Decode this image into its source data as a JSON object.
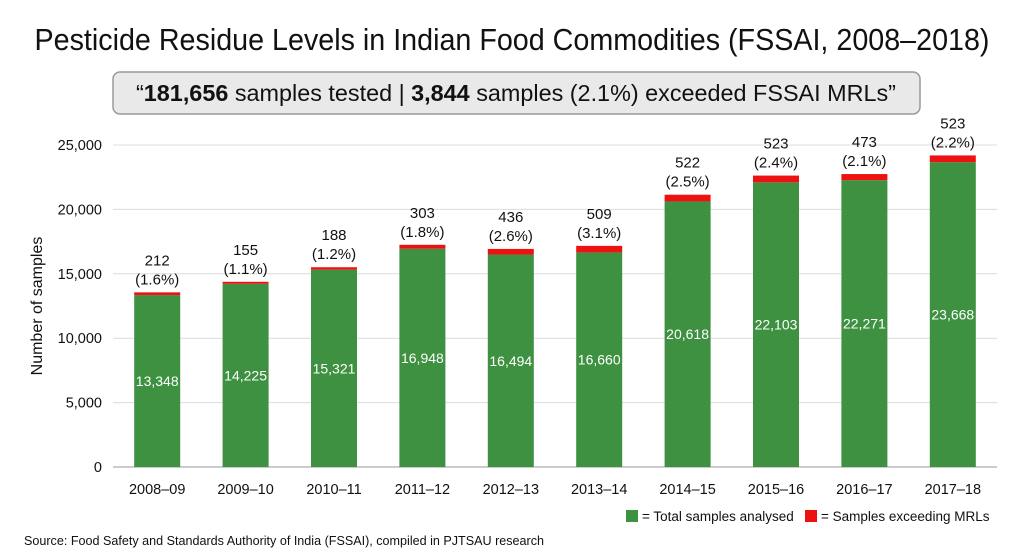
{
  "chart_data": {
    "type": "bar",
    "stacked": true,
    "title": "Pesticide Residue Levels in Indian Food Commodities (FSSAI, 2008–2018)",
    "callout": {
      "open_quote": "“",
      "total_value": "181,656",
      "total_text": " samples tested | ",
      "exceed_value": "3,844",
      "exceed_text": " samples (2.1%) exceeded FSSAI MRLs",
      "close_quote": "”"
    },
    "ylabel": "Number of samples",
    "xlabel": "",
    "ylim": [
      0,
      25000
    ],
    "yticks": [
      0,
      5000,
      10000,
      15000,
      20000,
      25000
    ],
    "ytick_labels": [
      "0",
      "5,000",
      "10,000",
      "15,000",
      "20,000",
      "25,000"
    ],
    "grid": true,
    "categories": [
      "2008–09",
      "2009–10",
      "2010–11",
      "2011–12",
      "2012–13",
      "2013–14",
      "2014–15",
      "2015–16",
      "2016–17",
      "2017–18"
    ],
    "series": [
      {
        "name": "= Total samples analysed",
        "color": "#3d9140",
        "values": [
          13348,
          14225,
          15321,
          16948,
          16494,
          16660,
          20618,
          22103,
          22271,
          23668
        ],
        "labels": [
          "13,348",
          "14,225",
          "15,321",
          "16,948",
          "16,494",
          "16,660",
          "20,618",
          "22,103",
          "22,271",
          "23,668"
        ]
      },
      {
        "name": "= Samples exceeding MRLs",
        "color": "#ee1111",
        "values": [
          212,
          155,
          188,
          303,
          436,
          509,
          522,
          523,
          473,
          523
        ],
        "labels": [
          "212",
          "155",
          "188",
          "303",
          "436",
          "509",
          "522",
          "523",
          "473",
          "523"
        ],
        "percent_labels": [
          "(1.6%)",
          "(1.1%)",
          "(1.2%)",
          "(1.8%)",
          "(2.6%)",
          "(3.1%)",
          "(2.5%)",
          "(2.4%)",
          "(2.1%)",
          "(2.2%)"
        ]
      }
    ],
    "legend_position": "bottom-right",
    "source": "Source: Food Safety and Standards Authority of India (FSSAI), compiled in PJTSAU research"
  }
}
